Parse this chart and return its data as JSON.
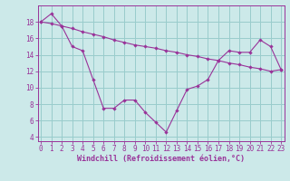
{
  "xlabel": "Windchill (Refroidissement éolien,°C)",
  "background_color": "#cce9e9",
  "grid_color": "#99cccc",
  "line_color": "#993399",
  "series1_y": [
    18.0,
    19.0,
    17.5,
    15.0,
    14.5,
    11.0,
    7.5,
    7.5,
    8.5,
    8.5,
    7.0,
    5.8,
    4.6,
    7.2,
    9.8,
    10.2,
    11.0,
    13.3,
    14.5,
    14.3,
    14.3,
    15.8,
    15.0,
    12.2
  ],
  "series2_y": [
    18.0,
    17.8,
    17.5,
    17.2,
    16.8,
    16.5,
    16.2,
    15.8,
    15.5,
    15.2,
    15.0,
    14.8,
    14.5,
    14.3,
    14.0,
    13.8,
    13.5,
    13.3,
    13.0,
    12.8,
    12.5,
    12.3,
    12.0,
    12.2
  ],
  "x": [
    0,
    1,
    2,
    3,
    4,
    5,
    6,
    7,
    8,
    9,
    10,
    11,
    12,
    13,
    14,
    15,
    16,
    17,
    18,
    19,
    20,
    21,
    22,
    23
  ],
  "ylim": [
    3.5,
    20.0
  ],
  "xlim": [
    -0.3,
    23.3
  ],
  "yticks": [
    4,
    6,
    8,
    10,
    12,
    14,
    16,
    18
  ],
  "xticks": [
    0,
    1,
    2,
    3,
    4,
    5,
    6,
    7,
    8,
    9,
    10,
    11,
    12,
    13,
    14,
    15,
    16,
    17,
    18,
    19,
    20,
    21,
    22,
    23
  ],
  "tick_fontsize": 5.5,
  "xlabel_fontsize": 6.0
}
